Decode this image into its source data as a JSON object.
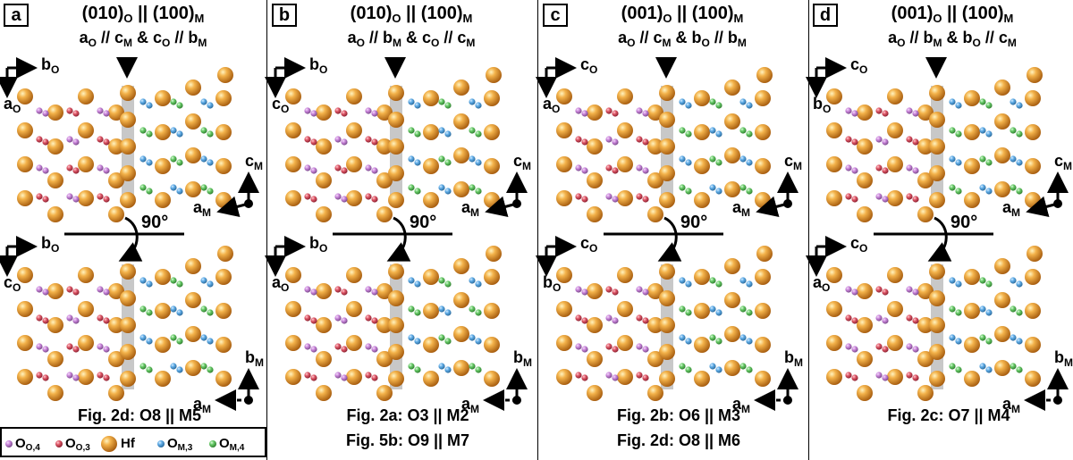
{
  "colors": {
    "hf": "#e8a23a",
    "o_o4": "#cc88dd",
    "o_o3": "#e05a6a",
    "o_m3": "#62aee8",
    "o_m4": "#6acc6a",
    "interface": "#c8c8c8"
  },
  "rotation_label": "90°",
  "panels": [
    {
      "label": "a",
      "title_left": "(010)",
      "title_left_sub": "O",
      "title_mid": " || (100)",
      "title_right_sub": "M",
      "rel": [
        {
          "t": "a",
          "s": "O"
        },
        {
          "t": " // c",
          "s": "M"
        },
        {
          "t": " & c",
          "s": "O"
        },
        {
          "t": " // b",
          "s": "M"
        }
      ],
      "top_axes": {
        "h": {
          "t": "b",
          "s": "O"
        },
        "v": {
          "t": "a",
          "s": "O"
        }
      },
      "top_m_axes": {
        "up": {
          "t": "c",
          "s": "M"
        },
        "left": {
          "t": "a",
          "s": "M"
        }
      },
      "bot_axes": {
        "h": {
          "t": "b",
          "s": "O"
        },
        "v": {
          "t": "c",
          "s": "O"
        }
      },
      "bot_m_axes": {
        "up": {
          "t": "b",
          "s": "M"
        },
        "left": {
          "t": "a",
          "s": "M"
        }
      },
      "figs": [
        "Fig. 2d: O8 || M5"
      ]
    },
    {
      "label": "b",
      "title_left": "(010)",
      "title_left_sub": "O",
      "title_mid": " || (100)",
      "title_right_sub": "M",
      "rel": [
        {
          "t": "a",
          "s": "O"
        },
        {
          "t": " // b",
          "s": "M"
        },
        {
          "t": " & c",
          "s": "O"
        },
        {
          "t": " // c",
          "s": "M"
        }
      ],
      "top_axes": {
        "h": {
          "t": "b",
          "s": "O"
        },
        "v": {
          "t": "c",
          "s": "O"
        }
      },
      "top_m_axes": {
        "up": {
          "t": "c",
          "s": "M"
        },
        "left": {
          "t": "a",
          "s": "M"
        }
      },
      "bot_axes": {
        "h": {
          "t": "b",
          "s": "O"
        },
        "v": {
          "t": "a",
          "s": "O"
        }
      },
      "bot_m_axes": {
        "up": {
          "t": "b",
          "s": "M"
        },
        "left": {
          "t": "a",
          "s": "M"
        }
      },
      "figs": [
        "Fig. 2a: O3 || M2",
        "Fig. 5b: O9 || M7"
      ]
    },
    {
      "label": "c",
      "title_left": "(001)",
      "title_left_sub": "O",
      "title_mid": " || (100)",
      "title_right_sub": "M",
      "rel": [
        {
          "t": "a",
          "s": "O"
        },
        {
          "t": " // c",
          "s": "M"
        },
        {
          "t": " & b",
          "s": "O"
        },
        {
          "t": " // b",
          "s": "M"
        }
      ],
      "top_axes": {
        "h": {
          "t": "c",
          "s": "O"
        },
        "v": {
          "t": "a",
          "s": "O"
        }
      },
      "top_m_axes": {
        "up": {
          "t": "c",
          "s": "M"
        },
        "left": {
          "t": "a",
          "s": "M"
        }
      },
      "bot_axes": {
        "h": {
          "t": "c",
          "s": "O"
        },
        "v": {
          "t": "b",
          "s": "O"
        }
      },
      "bot_m_axes": {
        "up": {
          "t": "b",
          "s": "M"
        },
        "left": {
          "t": "a",
          "s": "M"
        }
      },
      "figs": [
        "Fig. 2b: O6 || M3",
        "Fig. 2d: O8 || M6"
      ]
    },
    {
      "label": "d",
      "title_left": "(001)",
      "title_left_sub": "O",
      "title_mid": " || (100)",
      "title_right_sub": "M",
      "rel": [
        {
          "t": "a",
          "s": "O"
        },
        {
          "t": " // b",
          "s": "M"
        },
        {
          "t": " & b",
          "s": "O"
        },
        {
          "t": " // c",
          "s": "M"
        }
      ],
      "top_axes": {
        "h": {
          "t": "c",
          "s": "O"
        },
        "v": {
          "t": "b",
          "s": "O"
        }
      },
      "top_m_axes": {
        "up": {
          "t": "c",
          "s": "M"
        },
        "left": {
          "t": "a",
          "s": "M"
        }
      },
      "bot_axes": {
        "h": {
          "t": "c",
          "s": "O"
        },
        "v": {
          "t": "a",
          "s": "O"
        }
      },
      "bot_m_axes": {
        "up": {
          "t": "b",
          "s": "M"
        },
        "left": {
          "t": "a",
          "s": "M"
        }
      },
      "figs": [
        "Fig. 2c: O7 || M4"
      ]
    }
  ],
  "legend": [
    {
      "t": "O",
      "s": "O,4",
      "key": "o_o4"
    },
    {
      "t": "O",
      "s": "O,3",
      "key": "o_o3"
    },
    {
      "t": "Hf",
      "s": "",
      "key": "hf"
    },
    {
      "t": "O",
      "s": "M,3",
      "key": "o_m3"
    },
    {
      "t": "O",
      "s": "M,4",
      "key": "o_m4"
    }
  ]
}
